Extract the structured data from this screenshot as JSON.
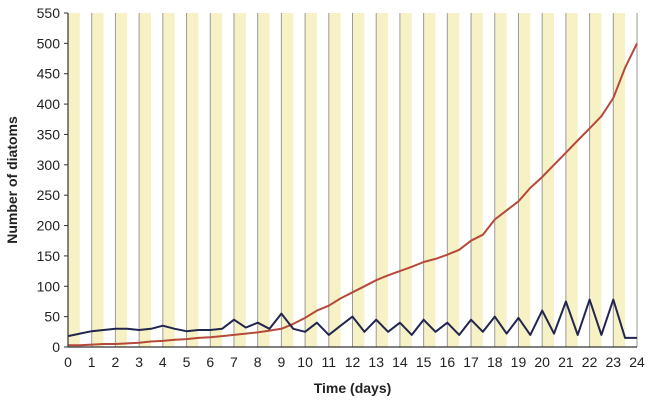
{
  "chart_data": {
    "type": "line",
    "xlabel": "Time (days)",
    "ylabel": "Number of diatoms",
    "xlim": [
      0,
      24
    ],
    "ylim": [
      0,
      550
    ],
    "x_ticks": [
      0,
      1,
      2,
      3,
      4,
      5,
      6,
      7,
      8,
      9,
      10,
      11,
      12,
      13,
      14,
      15,
      16,
      17,
      18,
      19,
      20,
      21,
      22,
      23,
      24
    ],
    "y_ticks": [
      0,
      50,
      100,
      150,
      200,
      250,
      300,
      350,
      400,
      450,
      500,
      550
    ],
    "grid": "vertical lines at each day",
    "background_bands": "light yellow band in the first half of each day",
    "colors": {
      "band": "#f6f2c6",
      "grid": "#9a9a9a",
      "series_growth": "#b5493a",
      "series_flat": "#22264f",
      "series_flat_spike": "#4c6a56",
      "axis": "#333333"
    },
    "series": [
      {
        "color_key": "series_growth",
        "x": [
          0,
          0.5,
          1,
          1.5,
          2,
          2.5,
          3,
          3.5,
          4,
          4.5,
          5,
          5.5,
          6,
          6.5,
          7,
          7.5,
          8,
          8.5,
          9,
          9.5,
          10,
          10.5,
          11,
          11.5,
          12,
          12.5,
          13,
          13.5,
          14,
          14.5,
          15,
          15.5,
          16,
          16.5,
          17,
          17.5,
          18,
          18.5,
          19,
          19.5,
          20,
          20.5,
          21,
          21.5,
          22,
          22.5,
          23,
          23.5,
          24
        ],
        "values": [
          3,
          3,
          4,
          5,
          5,
          6,
          7,
          9,
          10,
          12,
          13,
          15,
          16,
          18,
          20,
          22,
          24,
          27,
          30,
          38,
          48,
          60,
          68,
          80,
          90,
          100,
          110,
          118,
          125,
          132,
          140,
          145,
          152,
          160,
          175,
          185,
          210,
          225,
          240,
          262,
          280,
          300,
          320,
          340,
          360,
          380,
          410,
          460,
          500
        ]
      },
      {
        "color_key": "series_flat",
        "x": [
          0,
          0.5,
          1,
          1.5,
          2,
          2.5,
          3,
          3.5,
          4,
          4.5,
          5,
          5.5,
          6,
          6.5,
          7,
          7.5,
          8,
          8.5,
          9,
          9.5,
          10,
          10.5,
          11,
          11.5,
          12,
          12.5,
          13,
          13.5,
          14,
          14.5,
          15,
          15.5,
          16,
          16.5,
          17,
          17.5,
          18,
          18.5,
          19,
          19.5,
          20,
          20.5,
          21,
          21.5,
          22,
          22.5,
          23,
          23.5,
          24
        ],
        "values": [
          18,
          22,
          26,
          28,
          30,
          30,
          28,
          30,
          35,
          30,
          26,
          28,
          28,
          30,
          45,
          32,
          40,
          30,
          55,
          30,
          25,
          40,
          20,
          35,
          50,
          25,
          45,
          25,
          40,
          20,
          45,
          25,
          40,
          20,
          45,
          25,
          50,
          22,
          48,
          20,
          60,
          22,
          75,
          20,
          78,
          20,
          78,
          15,
          15
        ]
      }
    ]
  }
}
